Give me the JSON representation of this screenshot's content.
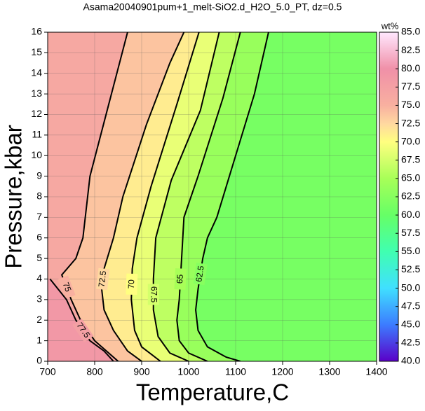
{
  "chart_data": {
    "type": "contour",
    "title": "Asama20040901pum+1_melt-SiO2.d_H2O_5.0_PT, dz=0.5",
    "xlabel": "Temperature,C",
    "ylabel": "Pressure,kbar",
    "xlim": [
      700,
      1400
    ],
    "xticks": [
      700,
      800,
      900,
      1000,
      1100,
      1200,
      1300,
      1400
    ],
    "ylim": [
      0,
      16
    ],
    "yticks": [
      0,
      1,
      2,
      3,
      4,
      5,
      6,
      7,
      8,
      9,
      10,
      11,
      12,
      13,
      14,
      15,
      16
    ],
    "grid": true,
    "colorbar": {
      "label": "wt%",
      "lim": [
        40,
        85
      ],
      "ticks": [
        {
          "value": 40,
          "label": "40.0"
        },
        {
          "value": 42.5,
          "label": "42.5"
        },
        {
          "value": 45,
          "label": "45.0"
        },
        {
          "value": 47.5,
          "label": "47.5"
        },
        {
          "value": 50,
          "label": "50.0"
        },
        {
          "value": 52.5,
          "label": "52.5"
        },
        {
          "value": 55,
          "label": "55.0"
        },
        {
          "value": 57.5,
          "label": "57.5"
        },
        {
          "value": 60,
          "label": "60.0"
        },
        {
          "value": 62.5,
          "label": "62.5"
        },
        {
          "value": 65,
          "label": "65.0"
        },
        {
          "value": 67.5,
          "label": "67.5"
        },
        {
          "value": 70,
          "label": "70.0"
        },
        {
          "value": 72.5,
          "label": "72.5"
        },
        {
          "value": 75,
          "label": "75.0"
        },
        {
          "value": 77.5,
          "label": "77.5"
        },
        {
          "value": 80,
          "label": "80.0"
        },
        {
          "value": 82.5,
          "label": "82.5"
        },
        {
          "value": 85,
          "label": "85.0"
        }
      ],
      "colormap": [
        {
          "value": 40,
          "color": "#5a00c8"
        },
        {
          "value": 45,
          "color": "#3c7cff"
        },
        {
          "value": 50,
          "color": "#40e0ff"
        },
        {
          "value": 55,
          "color": "#40ffb0"
        },
        {
          "value": 60,
          "color": "#66ff66"
        },
        {
          "value": 65,
          "color": "#a8ff58"
        },
        {
          "value": 70,
          "color": "#ffff80"
        },
        {
          "value": 72.5,
          "color": "#ffd8a0"
        },
        {
          "value": 75,
          "color": "#f8b0a0"
        },
        {
          "value": 80,
          "color": "#f090a8"
        },
        {
          "value": 85,
          "color": "#ffe8ff"
        }
      ]
    },
    "contours": [
      {
        "level": 62.5,
        "T": [
          1170,
          1140,
          1100,
          1060,
          1040,
          1030,
          1020,
          1015,
          1020,
          1040,
          1080,
          1110
        ],
        "P": [
          16,
          13,
          10,
          7,
          6,
          5,
          3.5,
          2.5,
          1.5,
          0.7,
          0.2,
          0
        ]
      },
      {
        "level": 65,
        "T": [
          1110,
          1073,
          1020,
          990,
          985,
          980,
          975,
          980,
          1000,
          1040
        ],
        "P": [
          16,
          12.8,
          9,
          7,
          5,
          3,
          2,
          1,
          0.4,
          0
        ]
      },
      {
        "level": 67.5,
        "T": [
          1065,
          1025,
          963,
          930,
          925,
          925,
          935,
          960,
          1000
        ],
        "P": [
          16,
          12.2,
          8.8,
          6,
          4,
          2.5,
          1.2,
          0.4,
          0
        ]
      },
      {
        "level": 70,
        "T": [
          1022,
          975,
          920,
          890,
          880,
          878,
          885,
          900,
          940
        ],
        "P": [
          16,
          12.5,
          8.5,
          6,
          4.5,
          3,
          1.5,
          0.7,
          0
        ]
      },
      {
        "level": 72.5,
        "T": [
          990,
          960,
          910,
          860,
          840,
          820,
          815,
          820,
          840,
          870,
          900
        ],
        "P": [
          16,
          14.5,
          11.5,
          8,
          6,
          4.5,
          3.5,
          2.5,
          1.5,
          0.5,
          0
        ]
      },
      {
        "level": 75,
        "T": [
          870,
          830,
          790,
          775,
          760,
          730,
          750,
          770,
          800,
          830,
          850
        ],
        "P": [
          16,
          12.5,
          9,
          6,
          5,
          4.2,
          3,
          2,
          1,
          0.4,
          0
        ]
      },
      {
        "level": 77.5,
        "T": [
          705,
          740,
          760,
          790,
          820,
          840
        ],
        "P": [
          4,
          3,
          2,
          1,
          0.5,
          0
        ]
      }
    ]
  }
}
